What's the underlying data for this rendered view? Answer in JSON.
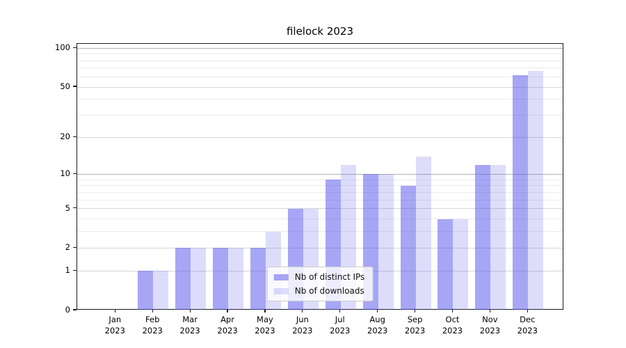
{
  "chart_data": {
    "type": "bar",
    "title": "filelock 2023",
    "categories": [
      "Jan 2023",
      "Feb 2023",
      "Mar 2023",
      "Apr 2023",
      "May 2023",
      "Jun 2023",
      "Jul 2023",
      "Aug 2023",
      "Sep 2023",
      "Oct 2023",
      "Nov 2023",
      "Dec 2023"
    ],
    "months": [
      "Jan",
      "Feb",
      "Mar",
      "Apr",
      "May",
      "Jun",
      "Jul",
      "Aug",
      "Sep",
      "Oct",
      "Nov",
      "Dec"
    ],
    "year": "2023",
    "series": [
      {
        "name": "Nb of distinct IPs",
        "color": "rgba(85,85,235,0.52)",
        "values": [
          0,
          1,
          2,
          2,
          2,
          5,
          9,
          10,
          8,
          4,
          12,
          62
        ]
      },
      {
        "name": "Nb of downloads",
        "color": "rgba(85,85,235,0.20)",
        "values": [
          0,
          1,
          2,
          2,
          3,
          5,
          12,
          10,
          14,
          4,
          12,
          67
        ]
      }
    ],
    "xlabel": "",
    "ylabel": "",
    "yscale": "log1p",
    "ylim": [
      0,
      108
    ],
    "y_major_ticks": [
      0,
      1,
      2,
      5,
      10,
      20,
      50,
      100
    ],
    "y_minor_ticks": [
      3,
      4,
      6,
      7,
      8,
      9,
      30,
      40,
      60,
      70,
      80,
      90
    ],
    "grid": true,
    "legend_position": "lower center"
  },
  "colors": {
    "grid_emphasis": "#b3b3b3",
    "grid_major": "#d6d6d6",
    "grid_minor": "#ebebeb",
    "spine": "#1a1a1a"
  },
  "grid_emphasis_values": [
    10,
    100
  ]
}
